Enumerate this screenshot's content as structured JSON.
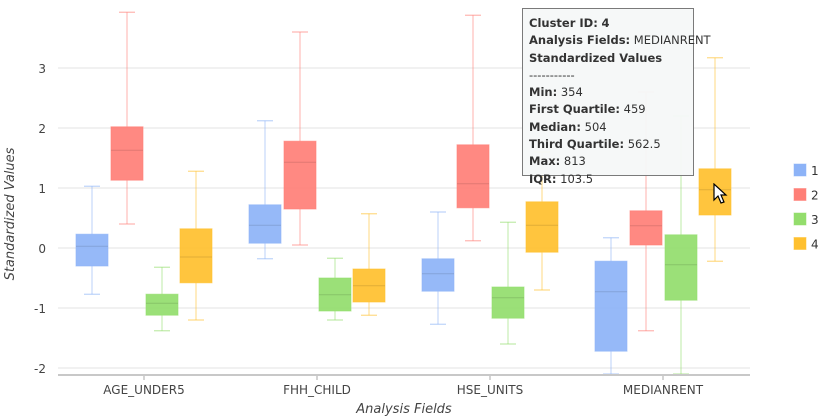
{
  "chart_data": {
    "type": "boxplot",
    "xlabel": "Analysis Fields",
    "ylabel": "Standardized Values",
    "ylim": [
      -2.1,
      4.0
    ],
    "yticks": [
      -2,
      -1,
      0,
      1,
      2,
      3
    ],
    "grid": true,
    "legend_position": "right",
    "categories": [
      "AGE_UNDER5",
      "FHH_CHILD",
      "HSE_UNITS",
      "MEDIANRENT"
    ],
    "series": [
      {
        "name": "1",
        "color": "#8db3f7",
        "boxes": [
          {
            "min": -0.77,
            "q1": -0.3,
            "median": 0.03,
            "q3": 0.23,
            "max": 1.03
          },
          {
            "min": -0.18,
            "q1": 0.08,
            "median": 0.38,
            "q3": 0.72,
            "max": 2.12
          },
          {
            "min": -1.27,
            "q1": -0.72,
            "median": -0.43,
            "q3": -0.18,
            "max": 0.6
          },
          {
            "min": -2.1,
            "q1": -1.72,
            "median": -0.73,
            "q3": -0.22,
            "max": 0.17
          }
        ]
      },
      {
        "name": "2",
        "color": "#ff7f77",
        "boxes": [
          {
            "min": 0.4,
            "q1": 1.13,
            "median": 1.63,
            "q3": 2.02,
            "max": 3.93
          },
          {
            "min": 0.05,
            "q1": 0.65,
            "median": 1.43,
            "q3": 1.78,
            "max": 3.6
          },
          {
            "min": 0.12,
            "q1": 0.67,
            "median": 1.07,
            "q3": 1.72,
            "max": 3.88
          },
          {
            "min": -1.38,
            "q1": 0.05,
            "median": 0.37,
            "q3": 0.62,
            "max": 2.6
          }
        ]
      },
      {
        "name": "3",
        "color": "#93dd6c",
        "boxes": [
          {
            "min": -1.38,
            "q1": -1.12,
            "median": -0.92,
            "q3": -0.77,
            "max": -0.32
          },
          {
            "min": -1.2,
            "q1": -1.05,
            "median": -0.78,
            "q3": -0.5,
            "max": -0.17
          },
          {
            "min": -1.6,
            "q1": -1.17,
            "median": -0.83,
            "q3": -0.65,
            "max": 0.43
          },
          {
            "min": -2.1,
            "q1": -0.87,
            "median": -0.28,
            "q3": 0.22,
            "max": 2.2
          }
        ]
      },
      {
        "name": "4",
        "color": "#ffc02e",
        "boxes": [
          {
            "min": -1.2,
            "q1": -0.58,
            "median": -0.15,
            "q3": 0.32,
            "max": 1.28
          },
          {
            "min": -1.12,
            "q1": -0.9,
            "median": -0.63,
            "q3": -0.35,
            "max": 0.57
          },
          {
            "min": -0.7,
            "q1": -0.07,
            "median": 0.38,
            "q3": 0.77,
            "max": 1.6
          },
          {
            "min": -0.22,
            "q1": 0.55,
            "median": 0.97,
            "q3": 1.32,
            "max": 3.17
          }
        ]
      }
    ]
  },
  "tooltip": {
    "cluster_label": "Cluster ID:",
    "cluster_value": "4",
    "field_label": "Analysis Fields:",
    "field_value": "MEDIANRENT",
    "section_title": "Standardized Values",
    "separator": "-----------",
    "min_label": "Min:",
    "min_value": "354",
    "q1_label": "First Quartile:",
    "q1_value": "459",
    "median_label": "Median:",
    "median_value": "504",
    "q3_label": "Third Quartile:",
    "q3_value": "562.5",
    "max_label": "Max:",
    "max_value": "813",
    "iqr_label": "IQR:",
    "iqr_value": "103.5"
  }
}
